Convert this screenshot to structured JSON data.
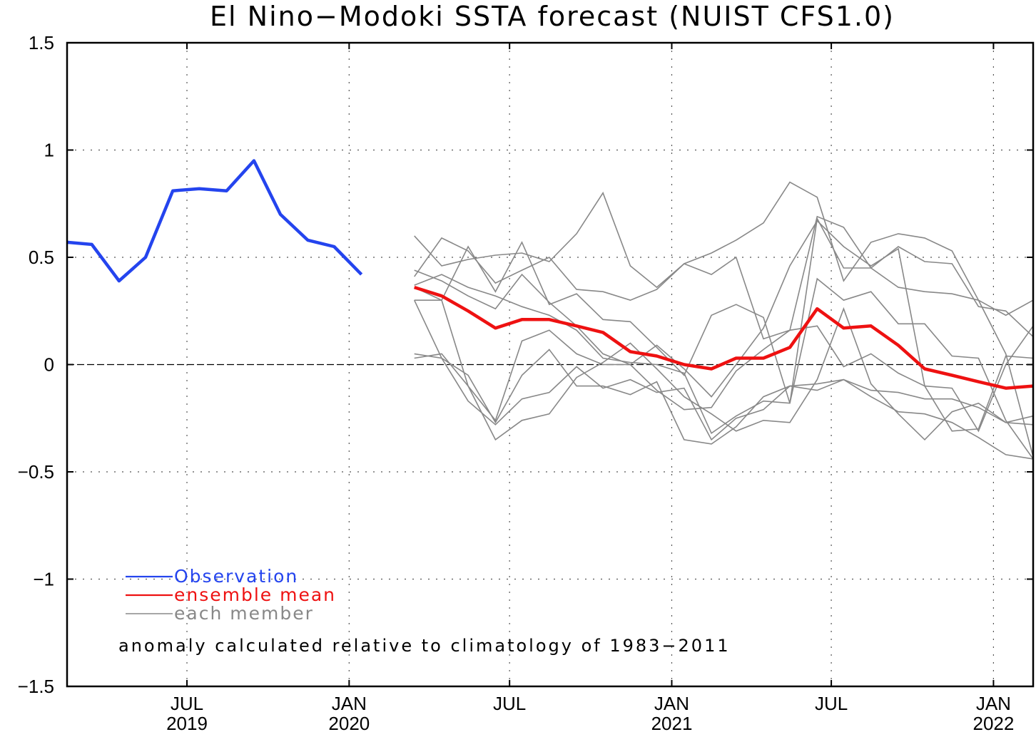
{
  "chart_data": {
    "type": "line",
    "title": "El Nino−Modoki SSTA forecast (NUIST CFS1.0)",
    "xlabel": "",
    "ylabel": "",
    "ylim": [
      -1.5,
      1.5
    ],
    "xlim": [
      "2019-02-15",
      "2022-02-15"
    ],
    "yticks": [
      {
        "value": 1.5,
        "label": "1.5"
      },
      {
        "value": 1,
        "label": "1"
      },
      {
        "value": 0.5,
        "label": "0.5"
      },
      {
        "value": 0,
        "label": "0"
      },
      {
        "value": -0.5,
        "label": "−0.5"
      },
      {
        "value": -1,
        "label": "−1"
      },
      {
        "value": -1.5,
        "label": "−1.5"
      }
    ],
    "xticks": [
      {
        "date": "2019-07-01",
        "month": "JUL",
        "year": "2019"
      },
      {
        "date": "2020-01-01",
        "month": "JAN",
        "year": "2020"
      },
      {
        "date": "2020-07-01",
        "month": "JUL",
        "year": ""
      },
      {
        "date": "2021-01-01",
        "month": "JAN",
        "year": "2021"
      },
      {
        "date": "2021-07-01",
        "month": "JUL",
        "year": ""
      },
      {
        "date": "2022-01-01",
        "month": "JAN",
        "year": "2022"
      }
    ],
    "grid": true,
    "zero_line": true,
    "observation": {
      "name": "Observation",
      "color": "#2444ee",
      "x": [
        "2019-02",
        "2019-03",
        "2019-04",
        "2019-05",
        "2019-06",
        "2019-07",
        "2019-08",
        "2019-09",
        "2019-10",
        "2019-11",
        "2019-12",
        "2020-01",
        "2020-02"
      ],
      "values": [
        0.57,
        0.56,
        0.39,
        0.5,
        0.81,
        0.82,
        0.81,
        0.95,
        0.7,
        0.58,
        0.55,
        0.42,
        null
      ]
    },
    "ensemble_mean": {
      "name": "ensemble mean",
      "color": "#ee1111",
      "x": [
        "2020-03",
        "2020-04",
        "2020-05",
        "2020-06",
        "2020-07",
        "2020-08",
        "2020-09",
        "2020-10",
        "2020-11",
        "2020-12",
        "2021-01",
        "2021-02",
        "2021-03",
        "2021-04",
        "2021-05",
        "2021-06",
        "2021-07",
        "2021-08",
        "2021-09",
        "2021-10",
        "2021-11",
        "2021-12",
        "2022-01",
        "2022-02"
      ],
      "values": [
        0.36,
        0.32,
        0.25,
        0.17,
        0.21,
        0.21,
        0.18,
        0.15,
        0.06,
        0.04,
        0.0,
        -0.02,
        0.03,
        0.03,
        0.08,
        0.26,
        0.17,
        0.18,
        0.09,
        -0.02,
        -0.05,
        -0.08,
        -0.11,
        -0.1
      ]
    },
    "members": {
      "name": "each member",
      "color": "#888888",
      "x": [
        "2020-03",
        "2020-04",
        "2020-05",
        "2020-06",
        "2020-07",
        "2020-08",
        "2020-09",
        "2020-10",
        "2020-11",
        "2020-12",
        "2021-01",
        "2021-02",
        "2021-03",
        "2021-04",
        "2021-05",
        "2021-06",
        "2021-07",
        "2021-08",
        "2021-09",
        "2021-10",
        "2021-11",
        "2021-12",
        "2022-01",
        "2022-02"
      ],
      "series": [
        [
          0.6,
          0.46,
          0.49,
          0.51,
          0.52,
          0.48,
          0.61,
          0.8,
          0.46,
          0.36,
          0.47,
          0.42,
          0.5,
          0.12,
          0.16,
          0.69,
          0.64,
          0.45,
          0.55,
          0.48,
          0.47,
          0.27,
          0.25,
          0.13
        ],
        [
          0.41,
          0.59,
          0.53,
          0.38,
          0.44,
          0.5,
          0.35,
          0.34,
          0.3,
          0.35,
          0.47,
          0.52,
          0.58,
          0.66,
          0.85,
          0.78,
          0.39,
          0.57,
          0.61,
          0.59,
          0.53,
          0.3,
          0.23,
          0.3
        ],
        [
          0.36,
          0.3,
          0.55,
          0.34,
          0.57,
          0.28,
          0.33,
          0.21,
          0.2,
          0.08,
          -0.05,
          0.23,
          0.28,
          0.22,
          -0.18,
          0.68,
          0.45,
          0.45,
          0.36,
          0.34,
          0.33,
          0.3,
          0.05,
          -0.43
        ],
        [
          0.44,
          0.39,
          0.32,
          0.26,
          0.42,
          0.29,
          0.18,
          0.05,
          0.0,
          0.09,
          -0.02,
          -0.15,
          0.0,
          0.17,
          0.46,
          0.67,
          0.55,
          0.46,
          0.54,
          -0.1,
          -0.31,
          -0.3,
          0.04,
          0.03
        ],
        [
          0.37,
          0.42,
          0.36,
          0.32,
          0.27,
          0.23,
          0.16,
          0.03,
          0.01,
          0.0,
          -0.04,
          -0.32,
          -0.24,
          -0.17,
          -0.18,
          0.4,
          0.3,
          0.34,
          0.19,
          0.19,
          0.04,
          0.03,
          -0.26,
          -0.44
        ],
        [
          0.3,
          0.3,
          -0.1,
          -0.26,
          0.11,
          0.16,
          0.05,
          0.0,
          0.0,
          -0.12,
          -0.21,
          -0.2,
          -0.03,
          0.07,
          0.16,
          0.18,
          -0.01,
          0.05,
          -0.04,
          -0.1,
          -0.11,
          -0.31,
          0.0,
          0.18
        ],
        [
          0.03,
          0.05,
          -0.1,
          -0.35,
          -0.26,
          -0.23,
          -0.06,
          0.01,
          0.1,
          -0.02,
          -0.15,
          -0.23,
          -0.31,
          -0.26,
          -0.27,
          -0.07,
          0.26,
          -0.09,
          -0.23,
          -0.35,
          -0.22,
          -0.18,
          -0.27,
          -0.24
        ],
        [
          0.3,
          0.03,
          -0.17,
          -0.28,
          -0.16,
          -0.13,
          -0.01,
          -0.11,
          -0.07,
          -0.13,
          -0.11,
          -0.35,
          -0.25,
          -0.21,
          -0.1,
          -0.12,
          -0.07,
          -0.15,
          -0.22,
          -0.23,
          -0.27,
          -0.34,
          -0.42,
          -0.44
        ],
        [
          0.05,
          0.03,
          -0.05,
          -0.27,
          -0.05,
          0.07,
          -0.1,
          -0.1,
          -0.14,
          -0.08,
          -0.35,
          -0.37,
          -0.29,
          -0.15,
          -0.1,
          -0.09,
          -0.07,
          -0.12,
          -0.13,
          -0.16,
          -0.16,
          -0.2,
          -0.27,
          -0.28
        ]
      ]
    },
    "legend": [
      {
        "label": "Observation",
        "color": "#2444ee"
      },
      {
        "label": "ensemble mean",
        "color": "#ee1111"
      },
      {
        "label": "each member",
        "color": "#888888"
      }
    ],
    "legend_position": "bottom-left",
    "annotation": "anomaly calculated relative to climatology of 1983−2011"
  }
}
